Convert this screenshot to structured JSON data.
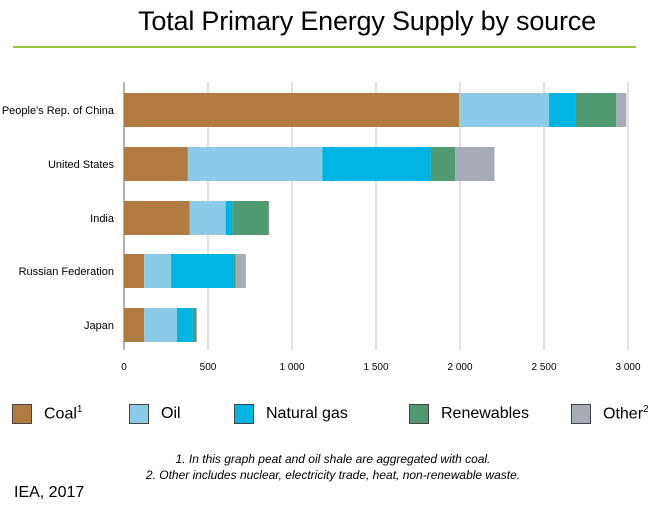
{
  "title": "Total Primary Energy Supply by source",
  "source": "IEA, 2017",
  "notes": [
    "1. In this graph peat and oil shale are aggregated with coal.",
    "2. Other includes nuclear, electricity trade, heat, non-renewable waste."
  ],
  "legend": [
    {
      "label": "Coal",
      "sup": "1",
      "color": "#b07a40"
    },
    {
      "label": "Oil",
      "sup": "",
      "color": "#8ccbe8"
    },
    {
      "label": "Natural gas",
      "sup": "",
      "color": "#00b5e4"
    },
    {
      "label": "Renewables",
      "sup": "",
      "color": "#4f9a73"
    },
    {
      "label": "Other",
      "sup": "2",
      "color": "#a8acb6"
    }
  ],
  "chart_data": {
    "type": "bar",
    "orientation": "horizontal",
    "stacked": true,
    "title": "Total Primary Energy Supply by source",
    "categories": [
      "People's Rep. of China",
      "United States",
      "India",
      "Russian Federation",
      "Japan"
    ],
    "series": [
      {
        "name": "Coal",
        "color": "#b07a40",
        "values": [
          1995,
          380,
          390,
          120,
          120
        ]
      },
      {
        "name": "Oil",
        "color": "#8ccbe8",
        "values": [
          535,
          800,
          215,
          160,
          195
        ]
      },
      {
        "name": "Natural gas",
        "color": "#00b5e4",
        "values": [
          155,
          645,
          40,
          370,
          95
        ]
      },
      {
        "name": "Renewables",
        "color": "#4f9a73",
        "values": [
          245,
          145,
          215,
          15,
          20
        ]
      },
      {
        "name": "Other",
        "color": "#a8acb6",
        "values": [
          60,
          235,
          5,
          60,
          5
        ]
      }
    ],
    "xlim": [
      0,
      3000
    ],
    "xticks": [
      0,
      500,
      1000,
      1500,
      2000,
      2500,
      3000
    ],
    "xtick_labels": [
      "0",
      "500",
      "1 000",
      "1 500",
      "2 000",
      "2 500",
      "3 000"
    ],
    "grid": "vertical",
    "legend_position": "bottom"
  }
}
